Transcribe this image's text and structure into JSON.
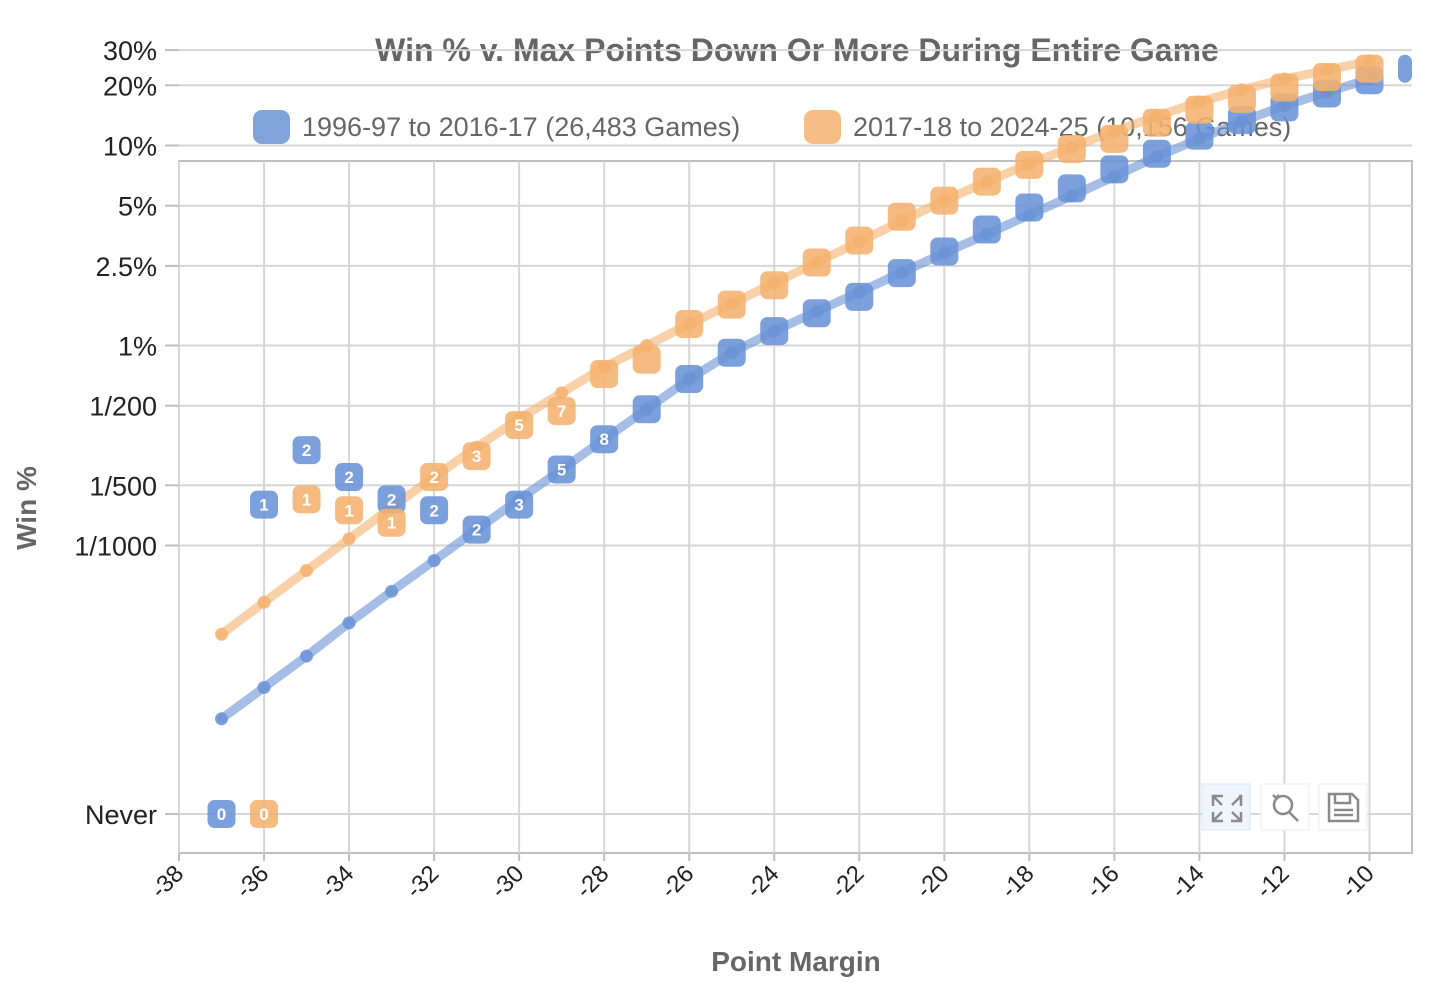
{
  "chart_data": {
    "type": "line",
    "title": "Win % v. Max Points Down Or More During Entire Game",
    "xlabel": "Point Margin",
    "ylabel": "Win %",
    "xlim": [
      -38,
      -9
    ],
    "x_ticks": [
      -38,
      -36,
      -34,
      -32,
      -30,
      -28,
      -26,
      -24,
      -22,
      -20,
      -18,
      -16,
      -14,
      -12,
      -10
    ],
    "y_scale": "log",
    "y_ticks": [
      {
        "label": "30%",
        "value": 30
      },
      {
        "label": "20%",
        "value": 20
      },
      {
        "label": "10%",
        "value": 10
      },
      {
        "label": "5%",
        "value": 5
      },
      {
        "label": "2.5%",
        "value": 2.5
      },
      {
        "label": "1%",
        "value": 1
      },
      {
        "label": "1/200",
        "value": 0.5
      },
      {
        "label": "1/500",
        "value": 0.2
      },
      {
        "label": "1/1000",
        "value": 0.1
      },
      {
        "label": "Never",
        "value": 0
      }
    ],
    "grid": true,
    "legend_position": "top",
    "series": [
      {
        "name": "1996-97 to 2016-17 (26,483 Games)",
        "color": "#6a93d6",
        "trend": {
          "x": [
            -37,
            -36,
            -35,
            -34,
            -33,
            -32,
            -31,
            -30,
            -29,
            -28,
            -27,
            -26,
            -25,
            -24,
            -23,
            -22,
            -21,
            -20,
            -19,
            -18,
            -17,
            -16,
            -15,
            -14,
            -13,
            -12,
            -11,
            -10
          ],
          "y": [
            0.0136,
            0.0195,
            0.028,
            0.041,
            0.059,
            0.084,
            0.12,
            0.17,
            0.24,
            0.34,
            0.48,
            0.68,
            0.92,
            1.18,
            1.48,
            1.85,
            2.32,
            2.9,
            3.6,
            4.5,
            5.6,
            7.0,
            8.8,
            10.8,
            13.2,
            15.8,
            18.5,
            21.5
          ]
        },
        "points": [
          {
            "x": -37,
            "y": 0,
            "label": "0"
          },
          {
            "x": -36,
            "y": 0.16,
            "label": "1"
          },
          {
            "x": -35,
            "y": 0.3,
            "label": "2"
          },
          {
            "x": -34,
            "y": 0.22,
            "label": "2"
          },
          {
            "x": -33,
            "y": 0.17,
            "label": "2"
          },
          {
            "x": -32,
            "y": 0.15,
            "label": "2"
          },
          {
            "x": -31,
            "y": 0.12,
            "label": "2"
          },
          {
            "x": -30,
            "y": 0.16,
            "label": "3"
          },
          {
            "x": -29,
            "y": 0.24,
            "label": "5"
          },
          {
            "x": -28,
            "y": 0.34,
            "label": "8"
          },
          {
            "x": -27,
            "y": 0.48
          },
          {
            "x": -26,
            "y": 0.68
          },
          {
            "x": -25,
            "y": 0.92
          },
          {
            "x": -24,
            "y": 1.18
          },
          {
            "x": -23,
            "y": 1.45
          },
          {
            "x": -22,
            "y": 1.75
          },
          {
            "x": -21,
            "y": 2.3
          },
          {
            "x": -20,
            "y": 2.95
          },
          {
            "x": -19,
            "y": 3.8
          },
          {
            "x": -18,
            "y": 4.9
          },
          {
            "x": -17,
            "y": 6.1
          },
          {
            "x": -16,
            "y": 7.6
          },
          {
            "x": -15,
            "y": 9.1
          },
          {
            "x": -14,
            "y": 11.2
          },
          {
            "x": -13,
            "y": 13.4
          },
          {
            "x": -12,
            "y": 15.5
          },
          {
            "x": -11,
            "y": 18.2
          },
          {
            "x": -10,
            "y": 21.2
          },
          {
            "x": -9,
            "y": 24.2
          }
        ]
      },
      {
        "name": "2017-18 to 2024-25 (10,156 Games)",
        "color": "#f4b26e",
        "trend": {
          "x": [
            -37,
            -36,
            -35,
            -34,
            -33,
            -32,
            -31,
            -30,
            -29,
            -28,
            -27,
            -26,
            -25,
            -24,
            -23,
            -22,
            -21,
            -20,
            -19,
            -18,
            -17,
            -16,
            -15,
            -14,
            -13,
            -12,
            -11,
            -10
          ],
          "y": [
            0.036,
            0.052,
            0.075,
            0.108,
            0.155,
            0.22,
            0.31,
            0.43,
            0.58,
            0.78,
            1.0,
            1.28,
            1.62,
            2.05,
            2.6,
            3.3,
            4.2,
            5.3,
            6.6,
            8.1,
            9.8,
            11.8,
            14.0,
            16.5,
            19.0,
            21.5,
            23.8,
            26.5
          ]
        },
        "points": [
          {
            "x": -36,
            "y": 0,
            "label": "0"
          },
          {
            "x": -35,
            "y": 0.17,
            "label": "1"
          },
          {
            "x": -34,
            "y": 0.15,
            "label": "1"
          },
          {
            "x": -33,
            "y": 0.13,
            "label": "1"
          },
          {
            "x": -32,
            "y": 0.22,
            "label": "2"
          },
          {
            "x": -31,
            "y": 0.28,
            "label": "3"
          },
          {
            "x": -30,
            "y": 0.4,
            "label": "5"
          },
          {
            "x": -29,
            "y": 0.47,
            "label": "7"
          },
          {
            "x": -28,
            "y": 0.72
          },
          {
            "x": -27,
            "y": 0.85
          },
          {
            "x": -26,
            "y": 1.28
          },
          {
            "x": -25,
            "y": 1.6
          },
          {
            "x": -24,
            "y": 2.0
          },
          {
            "x": -23,
            "y": 2.6
          },
          {
            "x": -22,
            "y": 3.35
          },
          {
            "x": -21,
            "y": 4.4
          },
          {
            "x": -20,
            "y": 5.3
          },
          {
            "x": -19,
            "y": 6.6
          },
          {
            "x": -18,
            "y": 8.0
          },
          {
            "x": -17,
            "y": 9.6
          },
          {
            "x": -16,
            "y": 10.8
          },
          {
            "x": -15,
            "y": 13.0
          },
          {
            "x": -14,
            "y": 15.1
          },
          {
            "x": -13,
            "y": 17.1
          },
          {
            "x": -12,
            "y": 19.5
          },
          {
            "x": -11,
            "y": 22.0
          },
          {
            "x": -10,
            "y": 24.2
          }
        ]
      }
    ]
  },
  "toolbox": {
    "fullscreen_icon": "fullscreen-icon",
    "restore_icon": "restore-zoom-icon",
    "save_icon": "save-image-icon"
  }
}
